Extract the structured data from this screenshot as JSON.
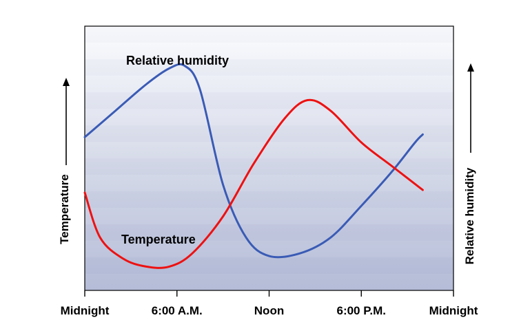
{
  "chart_data": {
    "type": "line",
    "x_ticks": [
      "Midnight",
      "6:00 A.M.",
      "Noon",
      "6:00 P.M.",
      "Midnight"
    ],
    "ylabel_left": "Temperature",
    "ylabel_right": "Relative humidity",
    "series": [
      {
        "name": "Relative humidity",
        "color": "#3a5bb5",
        "points": [
          [
            0,
            0.58
          ],
          [
            2,
            0.68
          ],
          [
            4,
            0.78
          ],
          [
            5.5,
            0.84
          ],
          [
            6.5,
            0.85
          ],
          [
            7.5,
            0.76
          ],
          [
            9,
            0.4
          ],
          [
            10.5,
            0.2
          ],
          [
            12,
            0.13
          ],
          [
            14,
            0.14
          ],
          [
            16,
            0.2
          ],
          [
            18,
            0.32
          ],
          [
            20,
            0.45
          ],
          [
            21.5,
            0.56
          ],
          [
            22,
            0.59
          ]
        ]
      },
      {
        "name": "Temperature",
        "color": "#ee1111",
        "points": [
          [
            0,
            0.37
          ],
          [
            1,
            0.2
          ],
          [
            2.5,
            0.12
          ],
          [
            4,
            0.09
          ],
          [
            5.5,
            0.09
          ],
          [
            7,
            0.14
          ],
          [
            9,
            0.28
          ],
          [
            11,
            0.48
          ],
          [
            13,
            0.65
          ],
          [
            14.5,
            0.72
          ],
          [
            16,
            0.68
          ],
          [
            18,
            0.56
          ],
          [
            20,
            0.47
          ],
          [
            22,
            0.38
          ]
        ]
      }
    ],
    "annotations": [
      "Relative humidity",
      "Temperature"
    ],
    "background": "vertical gradient, light (top) to blue-grey (bottom), banded"
  }
}
